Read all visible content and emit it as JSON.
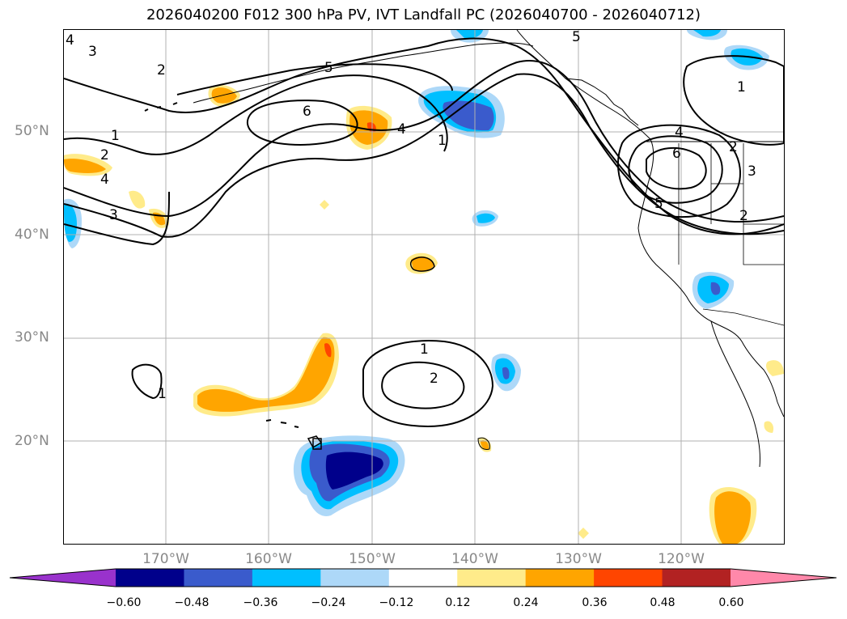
{
  "title": "2026040200 F012 300 hPa PV, IVT Landfall PC (2026040700 - 2026040712)",
  "map": {
    "lat_labels": [
      "50°N",
      "40°N",
      "30°N",
      "20°N"
    ],
    "lon_labels": [
      "170°W",
      "160°W",
      "150°W",
      "140°W",
      "130°W",
      "120°W"
    ],
    "pv_contour_labels": [
      "4",
      "3",
      "2",
      "1",
      "2",
      "4",
      "3",
      "5",
      "6",
      "4",
      "1",
      "5",
      "4",
      "6",
      "1",
      "2",
      "3",
      "5",
      "2",
      "1",
      "2",
      "1"
    ],
    "colors": {
      "land_outline": "#000000",
      "gridline": "#b0b0b0",
      "contour": "#000000"
    }
  },
  "colorbar": {
    "tick_labels": [
      "−0.60",
      "−0.48",
      "−0.36",
      "−0.24",
      "−0.12",
      "0.12",
      "0.24",
      "0.36",
      "0.48",
      "0.60"
    ],
    "bins": [
      {
        "color": "#9932cc"
      },
      {
        "color": "#00008b"
      },
      {
        "color": "#3a5bcc"
      },
      {
        "color": "#00bfff"
      },
      {
        "color": "#add8f8"
      },
      {
        "color": "#ffffff"
      },
      {
        "color": "#ffeb8a"
      },
      {
        "color": "#ffa500"
      },
      {
        "color": "#ff4500"
      },
      {
        "color": "#b22222"
      },
      {
        "color": "#ff88aa"
      }
    ]
  }
}
